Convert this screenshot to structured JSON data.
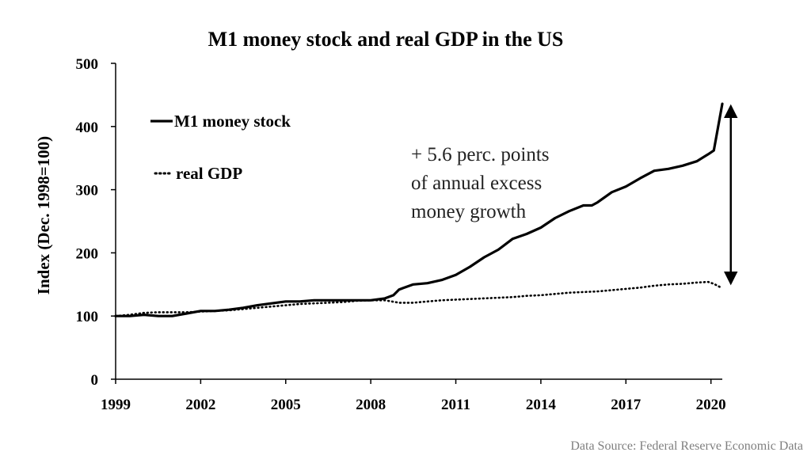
{
  "chart_data": {
    "type": "line",
    "title": "M1 money stock and real GDP in the US",
    "xlabel": "",
    "ylabel": "Index (Dec. 1998=100)",
    "xlim": [
      1999,
      2020.4
    ],
    "ylim": [
      0,
      500
    ],
    "x_ticks": [
      "1999",
      "2002",
      "2005",
      "2008",
      "2011",
      "2014",
      "2017",
      "2020"
    ],
    "x_tick_values": [
      1999,
      2002,
      2005,
      2008,
      2011,
      2014,
      2017,
      2020
    ],
    "y_ticks": [
      "0",
      "100",
      "200",
      "300",
      "400",
      "500"
    ],
    "y_tick_values": [
      0,
      100,
      200,
      300,
      400,
      500
    ],
    "legend_position": "top-left",
    "series": [
      {
        "name": "M1 money stock",
        "style": "solid",
        "color": "#000000",
        "points": [
          [
            1999,
            100
          ],
          [
            1999.5,
            100
          ],
          [
            2000,
            102
          ],
          [
            2000.5,
            100
          ],
          [
            2001,
            100
          ],
          [
            2001.5,
            104
          ],
          [
            2002,
            108
          ],
          [
            2002.5,
            108
          ],
          [
            2003,
            110
          ],
          [
            2003.5,
            113
          ],
          [
            2004,
            117
          ],
          [
            2004.5,
            120
          ],
          [
            2005,
            123
          ],
          [
            2005.5,
            123
          ],
          [
            2006,
            125
          ],
          [
            2006.5,
            125
          ],
          [
            2007,
            125
          ],
          [
            2007.5,
            125
          ],
          [
            2008,
            125
          ],
          [
            2008.5,
            128
          ],
          [
            2008.8,
            133
          ],
          [
            2009,
            142
          ],
          [
            2009.5,
            150
          ],
          [
            2010,
            152
          ],
          [
            2010.5,
            157
          ],
          [
            2011,
            165
          ],
          [
            2011.5,
            178
          ],
          [
            2012,
            193
          ],
          [
            2012.5,
            205
          ],
          [
            2013,
            222
          ],
          [
            2013.5,
            230
          ],
          [
            2014,
            240
          ],
          [
            2014.5,
            255
          ],
          [
            2015,
            266
          ],
          [
            2015.5,
            275
          ],
          [
            2015.8,
            275
          ],
          [
            2016,
            280
          ],
          [
            2016.5,
            296
          ],
          [
            2017,
            305
          ],
          [
            2017.5,
            318
          ],
          [
            2018,
            330
          ],
          [
            2018.5,
            333
          ],
          [
            2019,
            338
          ],
          [
            2019.5,
            345
          ],
          [
            2019.9,
            356
          ],
          [
            2020.1,
            362
          ],
          [
            2020.4,
            436
          ]
        ]
      },
      {
        "name": "real GDP",
        "style": "dotted",
        "color": "#000000",
        "points": [
          [
            1999,
            100
          ],
          [
            1999.5,
            102
          ],
          [
            2000,
            105
          ],
          [
            2000.5,
            106
          ],
          [
            2001,
            106
          ],
          [
            2001.5,
            106
          ],
          [
            2002,
            107
          ],
          [
            2002.5,
            108
          ],
          [
            2003,
            109
          ],
          [
            2003.5,
            111
          ],
          [
            2004,
            113
          ],
          [
            2004.5,
            115
          ],
          [
            2005,
            117
          ],
          [
            2005.5,
            119
          ],
          [
            2006,
            120
          ],
          [
            2006.5,
            121
          ],
          [
            2007,
            122
          ],
          [
            2007.5,
            124
          ],
          [
            2008,
            125
          ],
          [
            2008.5,
            125
          ],
          [
            2009,
            121
          ],
          [
            2009.5,
            121
          ],
          [
            2010,
            123
          ],
          [
            2010.5,
            125
          ],
          [
            2011,
            126
          ],
          [
            2011.5,
            127
          ],
          [
            2012,
            128
          ],
          [
            2012.5,
            129
          ],
          [
            2013,
            130
          ],
          [
            2013.5,
            132
          ],
          [
            2014,
            133
          ],
          [
            2014.5,
            135
          ],
          [
            2015,
            137
          ],
          [
            2015.5,
            138
          ],
          [
            2016,
            139
          ],
          [
            2016.5,
            141
          ],
          [
            2017,
            143
          ],
          [
            2017.5,
            145
          ],
          [
            2018,
            148
          ],
          [
            2018.5,
            150
          ],
          [
            2019,
            151
          ],
          [
            2019.5,
            153
          ],
          [
            2019.9,
            154
          ],
          [
            2020.1,
            151
          ],
          [
            2020.4,
            144
          ]
        ]
      }
    ],
    "annotations": [
      {
        "text_lines": [
          "+ 5.6 perc. points",
          "of annual excess",
          "money growth"
        ],
        "arrow_from": [
          2020.7,
          436
        ],
        "arrow_to": [
          2020.7,
          148
        ]
      }
    ],
    "source": "Data Source: Federal Reserve Economic Data"
  }
}
